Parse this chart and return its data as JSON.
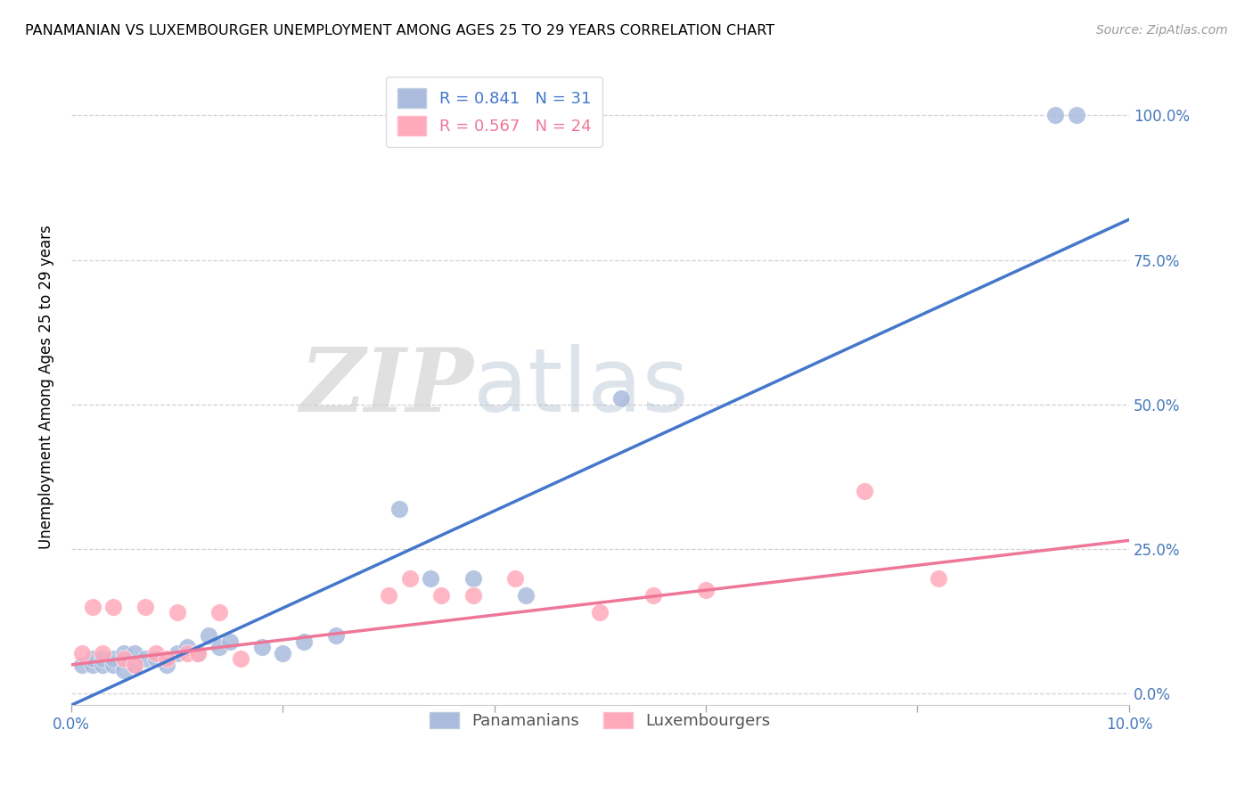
{
  "title": "PANAMANIAN VS LUXEMBOURGER UNEMPLOYMENT AMONG AGES 25 TO 29 YEARS CORRELATION CHART",
  "source": "Source: ZipAtlas.com",
  "ylabel": "Unemployment Among Ages 25 to 29 years",
  "watermark_zip": "ZIP",
  "watermark_atlas": "atlas",
  "blue_label": "Panamanians",
  "pink_label": "Luxembourgers",
  "legend_blue_r": "R = 0.841",
  "legend_blue_n": "N = 31",
  "legend_pink_r": "R = 0.567",
  "legend_pink_n": "N = 24",
  "blue_scatter_color": "#AABBDD",
  "pink_scatter_color": "#FFAABB",
  "blue_line_color": "#4477CC",
  "pink_line_color": "#EE7799",
  "xlim": [
    0.0,
    0.1
  ],
  "ylim": [
    -0.02,
    1.08
  ],
  "blue_points_x": [
    0.001,
    0.002,
    0.002,
    0.003,
    0.003,
    0.004,
    0.004,
    0.005,
    0.005,
    0.006,
    0.006,
    0.007,
    0.008,
    0.009,
    0.01,
    0.011,
    0.012,
    0.013,
    0.014,
    0.015,
    0.018,
    0.02,
    0.022,
    0.025,
    0.031,
    0.034,
    0.038,
    0.043,
    0.052,
    0.093,
    0.095
  ],
  "blue_points_y": [
    0.05,
    0.05,
    0.06,
    0.05,
    0.06,
    0.05,
    0.06,
    0.04,
    0.07,
    0.05,
    0.07,
    0.06,
    0.06,
    0.05,
    0.07,
    0.08,
    0.07,
    0.1,
    0.08,
    0.09,
    0.08,
    0.07,
    0.09,
    0.1,
    0.32,
    0.2,
    0.2,
    0.17,
    0.51,
    1.0,
    1.0
  ],
  "pink_points_x": [
    0.001,
    0.002,
    0.003,
    0.004,
    0.005,
    0.006,
    0.007,
    0.008,
    0.009,
    0.01,
    0.011,
    0.012,
    0.014,
    0.016,
    0.03,
    0.032,
    0.035,
    0.038,
    0.042,
    0.05,
    0.055,
    0.06,
    0.075,
    0.082
  ],
  "pink_points_y": [
    0.07,
    0.15,
    0.07,
    0.15,
    0.06,
    0.05,
    0.15,
    0.07,
    0.06,
    0.14,
    0.07,
    0.07,
    0.14,
    0.06,
    0.17,
    0.2,
    0.17,
    0.17,
    0.2,
    0.14,
    0.17,
    0.18,
    0.35,
    0.2
  ],
  "blue_line_x": [
    0.0,
    0.1
  ],
  "blue_line_y": [
    -0.02,
    0.82
  ],
  "pink_line_x": [
    0.0,
    0.1
  ],
  "pink_line_y": [
    0.05,
    0.265
  ],
  "ytick_labels": [
    "0.0%",
    "25.0%",
    "50.0%",
    "75.0%",
    "100.0%"
  ],
  "ytick_values": [
    0.0,
    0.25,
    0.5,
    0.75,
    1.0
  ],
  "xtick_values": [
    0.0,
    0.02,
    0.04,
    0.06,
    0.08,
    0.1
  ],
  "xtick_show": [
    true,
    false,
    false,
    false,
    false,
    true
  ],
  "xtick_labels_show": [
    "0.0%",
    "",
    "",
    "",
    "",
    "10.0%"
  ]
}
